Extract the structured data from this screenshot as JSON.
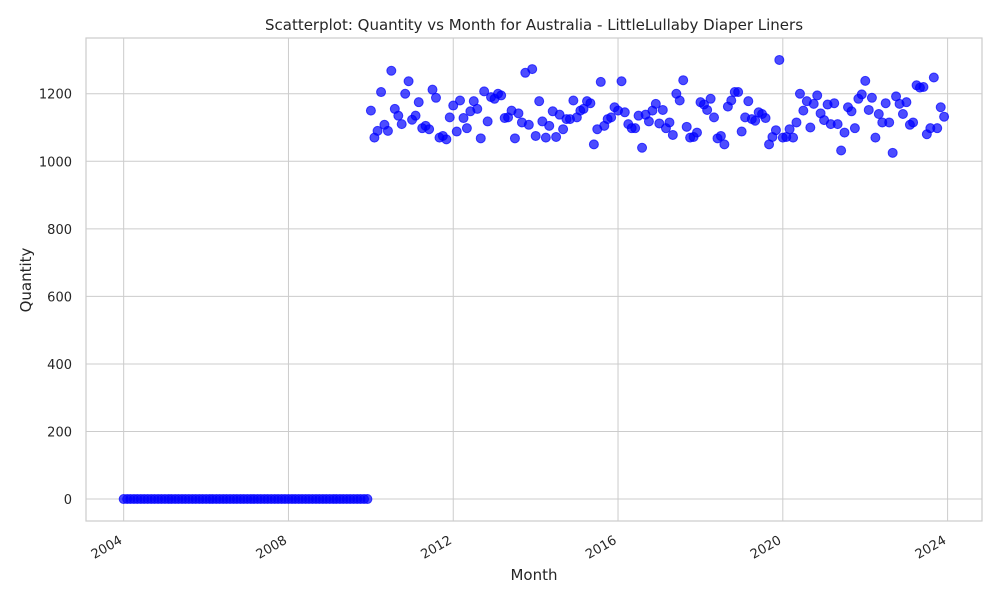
{
  "chart_data": {
    "type": "scatter",
    "title": "Scatterplot: Quantity vs Month for Australia - LittleLullaby Diaper Liners",
    "xlabel": "Month",
    "ylabel": "Quantity",
    "x_type": "date",
    "xlim": [
      "2003-02-01",
      "2024-11-01"
    ],
    "ylim": [
      -65,
      1365
    ],
    "x_ticks": [
      "2004",
      "2008",
      "2012",
      "2016",
      "2020",
      "2024"
    ],
    "y_ticks": [
      0,
      200,
      400,
      600,
      800,
      1000,
      1200
    ],
    "grid": true,
    "color": "#0000ff",
    "zero_period": {
      "start": "2004-01",
      "end": "2009-12",
      "value": 0
    },
    "series": [
      {
        "x": [
          "2010-01",
          "2010-02",
          "2010-03",
          "2010-04",
          "2010-05",
          "2010-06",
          "2010-07",
          "2010-08",
          "2010-09",
          "2010-10",
          "2010-11",
          "2010-12",
          "2011-01",
          "2011-02",
          "2011-03",
          "2011-04",
          "2011-05",
          "2011-06",
          "2011-07",
          "2011-08",
          "2011-09",
          "2011-10",
          "2011-11",
          "2011-12",
          "2012-01",
          "2012-02",
          "2012-03",
          "2012-04",
          "2012-05",
          "2012-06",
          "2012-07",
          "2012-08",
          "2012-09",
          "2012-10",
          "2012-11",
          "2012-12",
          "2013-01",
          "2013-02",
          "2013-03",
          "2013-04",
          "2013-05",
          "2013-06",
          "2013-07",
          "2013-08",
          "2013-09",
          "2013-10",
          "2013-11",
          "2013-12",
          "2014-01",
          "2014-02",
          "2014-03",
          "2014-04",
          "2014-05",
          "2014-06",
          "2014-07",
          "2014-08",
          "2014-09",
          "2014-10",
          "2014-11",
          "2014-12",
          "2015-01",
          "2015-02",
          "2015-03",
          "2015-04",
          "2015-05",
          "2015-06",
          "2015-07",
          "2015-08",
          "2015-09",
          "2015-10",
          "2015-11",
          "2015-12",
          "2016-01",
          "2016-02",
          "2016-03",
          "2016-04",
          "2016-05",
          "2016-06",
          "2016-07",
          "2016-08",
          "2016-09",
          "2016-10",
          "2016-11",
          "2016-12",
          "2017-01",
          "2017-02",
          "2017-03",
          "2017-04",
          "2017-05",
          "2017-06",
          "2017-07",
          "2017-08",
          "2017-09",
          "2017-10",
          "2017-11",
          "2017-12",
          "2018-01",
          "2018-02",
          "2018-03",
          "2018-04",
          "2018-05",
          "2018-06",
          "2018-07",
          "2018-08",
          "2018-09",
          "2018-10",
          "2018-11",
          "2018-12",
          "2019-01",
          "2019-02",
          "2019-03",
          "2019-04",
          "2019-05",
          "2019-06",
          "2019-07",
          "2019-08",
          "2019-09",
          "2019-10",
          "2019-11",
          "2019-12",
          "2020-01",
          "2020-02",
          "2020-03",
          "2020-04",
          "2020-05",
          "2020-06",
          "2020-07",
          "2020-08",
          "2020-09",
          "2020-10",
          "2020-11",
          "2020-12",
          "2021-01",
          "2021-02",
          "2021-03",
          "2021-04",
          "2021-05",
          "2021-06",
          "2021-07",
          "2021-08",
          "2021-09",
          "2021-10",
          "2021-11",
          "2021-12",
          "2022-01",
          "2022-02",
          "2022-03",
          "2022-04",
          "2022-05",
          "2022-06",
          "2022-07",
          "2022-08",
          "2022-09",
          "2022-10",
          "2022-11",
          "2022-12",
          "2023-01",
          "2023-02",
          "2023-03",
          "2023-04",
          "2023-05",
          "2023-06",
          "2023-07",
          "2023-08",
          "2023-09",
          "2023-10",
          "2023-11",
          "2023-12"
        ],
        "y": [
          1150,
          1070,
          1090,
          1205,
          1108,
          1090,
          1268,
          1155,
          1135,
          1110,
          1200,
          1237,
          1123,
          1135,
          1175,
          1098,
          1105,
          1095,
          1212,
          1188,
          1070,
          1075,
          1065,
          1130,
          1165,
          1088,
          1180,
          1128,
          1098,
          1148,
          1178,
          1155,
          1068,
          1207,
          1118,
          1190,
          1185,
          1200,
          1195,
          1128,
          1130,
          1150,
          1068,
          1142,
          1115,
          1262,
          1108,
          1273,
          1075,
          1178,
          1118,
          1070,
          1105,
          1148,
          1072,
          1138,
          1095,
          1125,
          1125,
          1180,
          1130,
          1150,
          1155,
          1178,
          1172,
          1050,
          1095,
          1235,
          1105,
          1125,
          1130,
          1160,
          1150,
          1237,
          1145,
          1110,
          1098,
          1098,
          1135,
          1040,
          1138,
          1118,
          1150,
          1170,
          1112,
          1152,
          1098,
          1115,
          1078,
          1200,
          1180,
          1240,
          1102,
          1070,
          1072,
          1085,
          1175,
          1168,
          1152,
          1185,
          1130,
          1068,
          1075,
          1050,
          1162,
          1180,
          1205,
          1205,
          1088,
          1130,
          1178,
          1125,
          1120,
          1145,
          1140,
          1128,
          1050,
          1072,
          1092,
          1300,
          1070,
          1072,
          1095,
          1070,
          1115,
          1200,
          1150,
          1178,
          1100,
          1170,
          1195,
          1142,
          1122,
          1168,
          1110,
          1172,
          1110,
          1032,
          1085,
          1160,
          1148,
          1098,
          1185,
          1198,
          1238,
          1152,
          1188,
          1070,
          1140,
          1115,
          1172,
          1115,
          1025,
          1192,
          1170,
          1140,
          1175,
          1108,
          1115,
          1225,
          1218,
          1220,
          1080,
          1098,
          1248,
          1098,
          1160,
          1132
        ]
      }
    ]
  }
}
